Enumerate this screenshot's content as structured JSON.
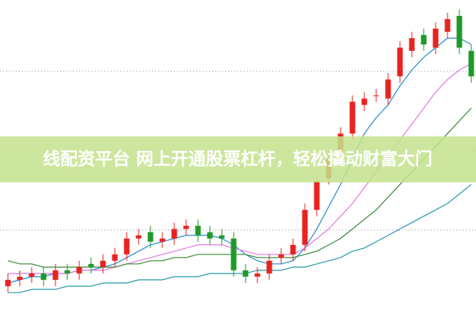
{
  "chart_data": {
    "type": "candlestick",
    "ylim": [
      0,
      100
    ],
    "up_color": "#e8231f",
    "down_color": "#1f9a2a",
    "open": [
      10,
      12,
      13,
      14,
      12,
      15,
      14,
      17,
      16,
      18,
      20,
      25,
      27,
      24,
      25,
      28,
      29,
      27,
      26,
      25,
      15,
      13,
      14,
      19,
      20,
      23,
      34,
      44,
      50,
      58,
      67,
      70,
      69,
      76,
      84,
      89,
      85,
      90,
      95,
      84
    ],
    "close": [
      12,
      13,
      14,
      12,
      15,
      14,
      16,
      16,
      18,
      20,
      25,
      26,
      24,
      25,
      28,
      29,
      26,
      25,
      25,
      15,
      13,
      14,
      18,
      20,
      23,
      34,
      43,
      50,
      58,
      68,
      69,
      70,
      75,
      85,
      88,
      86,
      91,
      94,
      85,
      76
    ],
    "high": [
      14,
      15,
      16,
      16,
      17,
      17,
      18,
      19,
      20,
      22,
      27,
      28,
      29,
      27,
      30,
      31,
      31,
      29,
      28,
      27,
      17,
      16,
      20,
      22,
      25,
      36,
      45,
      52,
      60,
      70,
      71,
      72,
      77,
      87,
      90,
      91,
      93,
      96,
      97,
      86
    ],
    "low": [
      8,
      10,
      11,
      10,
      10,
      12,
      12,
      14,
      14,
      16,
      18,
      23,
      22,
      22,
      23,
      26,
      24,
      23,
      23,
      13,
      11,
      11,
      12,
      17,
      18,
      21,
      32,
      42,
      48,
      56,
      65,
      68,
      67,
      74,
      82,
      84,
      83,
      88,
      83,
      74
    ],
    "series": [
      {
        "color": "#2a8fd0",
        "values": [
          11,
          12,
          13,
          13,
          14,
          14,
          15,
          15,
          16,
          17,
          19,
          21,
          23,
          24,
          25,
          26,
          26,
          26,
          25,
          23,
          20,
          18,
          17,
          17,
          18,
          22,
          28,
          35,
          42,
          50,
          58,
          63,
          67,
          73,
          78,
          82,
          85,
          88,
          88,
          86
        ]
      },
      {
        "color": "#e27fe0",
        "values": [
          14,
          14,
          14,
          14,
          14,
          14,
          15,
          15,
          15,
          16,
          17,
          18,
          19,
          20,
          21,
          22,
          23,
          23,
          23,
          22,
          21,
          20,
          20,
          20,
          20,
          22,
          25,
          28,
          32,
          36,
          41,
          46,
          51,
          56,
          61,
          66,
          71,
          75,
          78,
          80
        ]
      },
      {
        "color": "#3c8a3c",
        "values": [
          18,
          17,
          17,
          16,
          16,
          16,
          16,
          16,
          16,
          16,
          17,
          17,
          18,
          18,
          19,
          19,
          20,
          20,
          20,
          20,
          20,
          19,
          19,
          19,
          19,
          20,
          21,
          23,
          25,
          28,
          31,
          34,
          38,
          42,
          46,
          50,
          54,
          58,
          62,
          66
        ]
      },
      {
        "color": "#2f9aa8",
        "values": [
          8,
          8,
          9,
          9,
          9,
          10,
          10,
          10,
          11,
          11,
          11,
          12,
          12,
          12,
          13,
          13,
          13,
          14,
          14,
          14,
          14,
          15,
          15,
          15,
          16,
          16,
          17,
          18,
          19,
          21,
          22,
          24,
          26,
          28,
          30,
          32,
          34,
          36,
          39,
          42
        ]
      }
    ]
  },
  "banner": "线配资平台 网上开通股票杠杆，轻松撬动财富大门"
}
